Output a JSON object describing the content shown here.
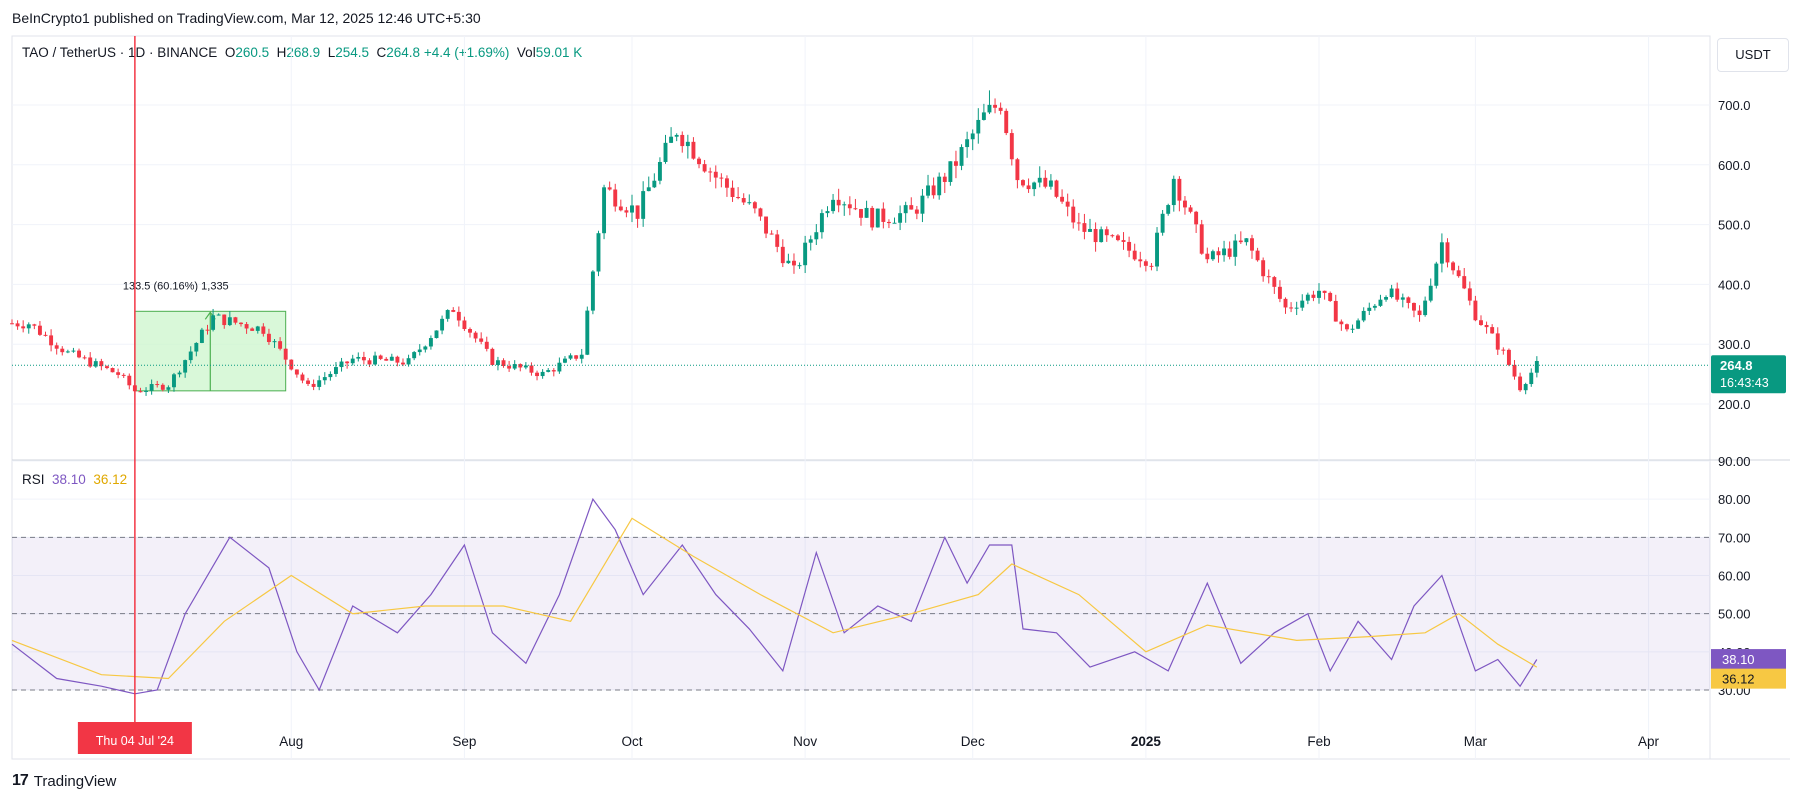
{
  "header": {
    "publisher_line": "BeInCrypto1 published on TradingView.com, Mar 12, 2025 12:46 UTC+5:30",
    "currency": "USDT"
  },
  "legend": {
    "symbol": "TAO / TetherUS · 1D · BINANCE",
    "open_label": "O",
    "open": "260.5",
    "high_label": "H",
    "high": "268.9",
    "low_label": "L",
    "low": "254.5",
    "close_label": "C",
    "close": "264.8",
    "change": "+4.4 (+1.69%)",
    "vol_label": "Vol",
    "vol": "59.01 K"
  },
  "rsi_legend": {
    "name": "RSI",
    "rsi": "38.10",
    "ma": "36.12"
  },
  "price_tag": {
    "price": "264.8",
    "countdown": "16:43:43"
  },
  "rsi_tags": {
    "rsi": "38.10",
    "ma": "36.12"
  },
  "cursor_label": "Thu 04 Jul '24",
  "measure_label": "133.5 (60.16%) 1,335",
  "footer": {
    "brand": "TradingView",
    "mark": "17"
  },
  "colors": {
    "up": "#089981",
    "down": "#f23645",
    "rsi_line": "#7e57c2",
    "rsi_ma": "#f7c843",
    "cursor": "#f23645",
    "measure_fill": "#ccf5cc",
    "measure_line": "#4caf50"
  },
  "chart_data": [
    {
      "type": "candlestick",
      "title": "TAO / TetherUS · 1D · BINANCE",
      "x_ticks": [
        "Aug",
        "Sep",
        "Oct",
        "Nov",
        "Dec",
        "2025",
        "Feb",
        "Mar",
        "Apr"
      ],
      "y_ticks": [
        "200.0",
        "300.0",
        "400.0",
        "500.0",
        "600.0",
        "700.0"
      ],
      "ylim": [
        120,
        770
      ],
      "x_range": [
        "2024-06-12",
        "2025-04-12"
      ],
      "grid": true,
      "last_price": 264.8,
      "series": [
        {
          "name": "TAO / TetherUS",
          "x": [
            "2024-06-15",
            "2024-06-22",
            "2024-07-01",
            "2024-07-04",
            "2024-07-10",
            "2024-07-18",
            "2024-07-27",
            "2024-08-04",
            "2024-08-12",
            "2024-08-22",
            "2024-08-30",
            "2024-09-06",
            "2024-09-15",
            "2024-09-22",
            "2024-09-26",
            "2024-10-02",
            "2024-10-09",
            "2024-10-16",
            "2024-10-23",
            "2024-10-30",
            "2024-11-06",
            "2024-11-13",
            "2024-11-20",
            "2024-11-27",
            "2024-12-03",
            "2024-12-06",
            "2024-12-09",
            "2024-12-15",
            "2024-12-20",
            "2024-12-26",
            "2025-01-02",
            "2025-01-06",
            "2025-01-12",
            "2025-01-19",
            "2025-01-26",
            "2025-02-01",
            "2025-02-06",
            "2025-02-13",
            "2025-02-19",
            "2025-02-23",
            "2025-03-01",
            "2025-03-06",
            "2025-03-09",
            "2025-03-12"
          ],
          "close": [
            335,
            285,
            250,
            222,
            232,
            345,
            325,
            228,
            275,
            270,
            360,
            272,
            250,
            285,
            560,
            520,
            660,
            580,
            520,
            420,
            555,
            510,
            520,
            590,
            680,
            705,
            580,
            560,
            495,
            470,
            440,
            580,
            440,
            470,
            360,
            390,
            320,
            390,
            345,
            470,
            350,
            285,
            228,
            265
          ]
        }
      ]
    },
    {
      "type": "line",
      "title": "RSI",
      "x_ticks": [
        "Aug",
        "Sep",
        "Oct",
        "Nov",
        "Dec",
        "2025",
        "Feb",
        "Mar",
        "Apr"
      ],
      "y_ticks": [
        "30.00",
        "40.00",
        "50.00",
        "60.00",
        "70.00",
        "80.00",
        "90.00"
      ],
      "ylim": [
        25,
        90
      ],
      "bands": [
        30,
        50,
        70
      ],
      "x_range": [
        "2024-06-12",
        "2025-04-12"
      ],
      "series": [
        {
          "name": "RSI",
          "x": [
            "2024-06-12",
            "2024-06-20",
            "2024-06-28",
            "2024-07-04",
            "2024-07-08",
            "2024-07-13",
            "2024-07-21",
            "2024-07-28",
            "2024-08-02",
            "2024-08-06",
            "2024-08-12",
            "2024-08-20",
            "2024-08-26",
            "2024-09-01",
            "2024-09-06",
            "2024-09-12",
            "2024-09-18",
            "2024-09-24",
            "2024-09-28",
            "2024-10-03",
            "2024-10-10",
            "2024-10-16",
            "2024-10-22",
            "2024-10-28",
            "2024-11-03",
            "2024-11-08",
            "2024-11-14",
            "2024-11-20",
            "2024-11-26",
            "2024-11-30",
            "2024-12-04",
            "2024-12-08",
            "2024-12-10",
            "2024-12-16",
            "2024-12-22",
            "2024-12-30",
            "2025-01-05",
            "2025-01-12",
            "2025-01-18",
            "2025-01-24",
            "2025-01-30",
            "2025-02-03",
            "2025-02-08",
            "2025-02-14",
            "2025-02-18",
            "2025-02-23",
            "2025-03-01",
            "2025-03-05",
            "2025-03-09",
            "2025-03-12"
          ],
          "values": [
            42,
            33,
            31,
            29,
            30,
            50,
            70,
            62,
            40,
            30,
            52,
            45,
            55,
            68,
            45,
            37,
            55,
            80,
            72,
            55,
            68,
            55,
            46,
            35,
            66,
            45,
            52,
            48,
            70,
            58,
            68,
            68,
            46,
            45,
            36,
            40,
            35,
            58,
            37,
            45,
            50,
            35,
            48,
            38,
            52,
            60,
            35,
            38,
            31,
            38
          ]
        },
        {
          "name": "RSI MA",
          "x": [
            "2024-06-12",
            "2024-06-28",
            "2024-07-10",
            "2024-07-20",
            "2024-08-01",
            "2024-08-12",
            "2024-08-25",
            "2024-09-08",
            "2024-09-20",
            "2024-10-01",
            "2024-10-12",
            "2024-10-24",
            "2024-11-06",
            "2024-11-20",
            "2024-12-02",
            "2024-12-08",
            "2024-12-20",
            "2025-01-01",
            "2025-01-12",
            "2025-01-28",
            "2025-02-10",
            "2025-02-20",
            "2025-02-26",
            "2025-03-05",
            "2025-03-12"
          ],
          "values": [
            43,
            34,
            33,
            48,
            60,
            50,
            52,
            52,
            48,
            75,
            65,
            55,
            45,
            50,
            55,
            63,
            55,
            40,
            47,
            43,
            44,
            45,
            50,
            42,
            36
          ]
        }
      ]
    }
  ]
}
